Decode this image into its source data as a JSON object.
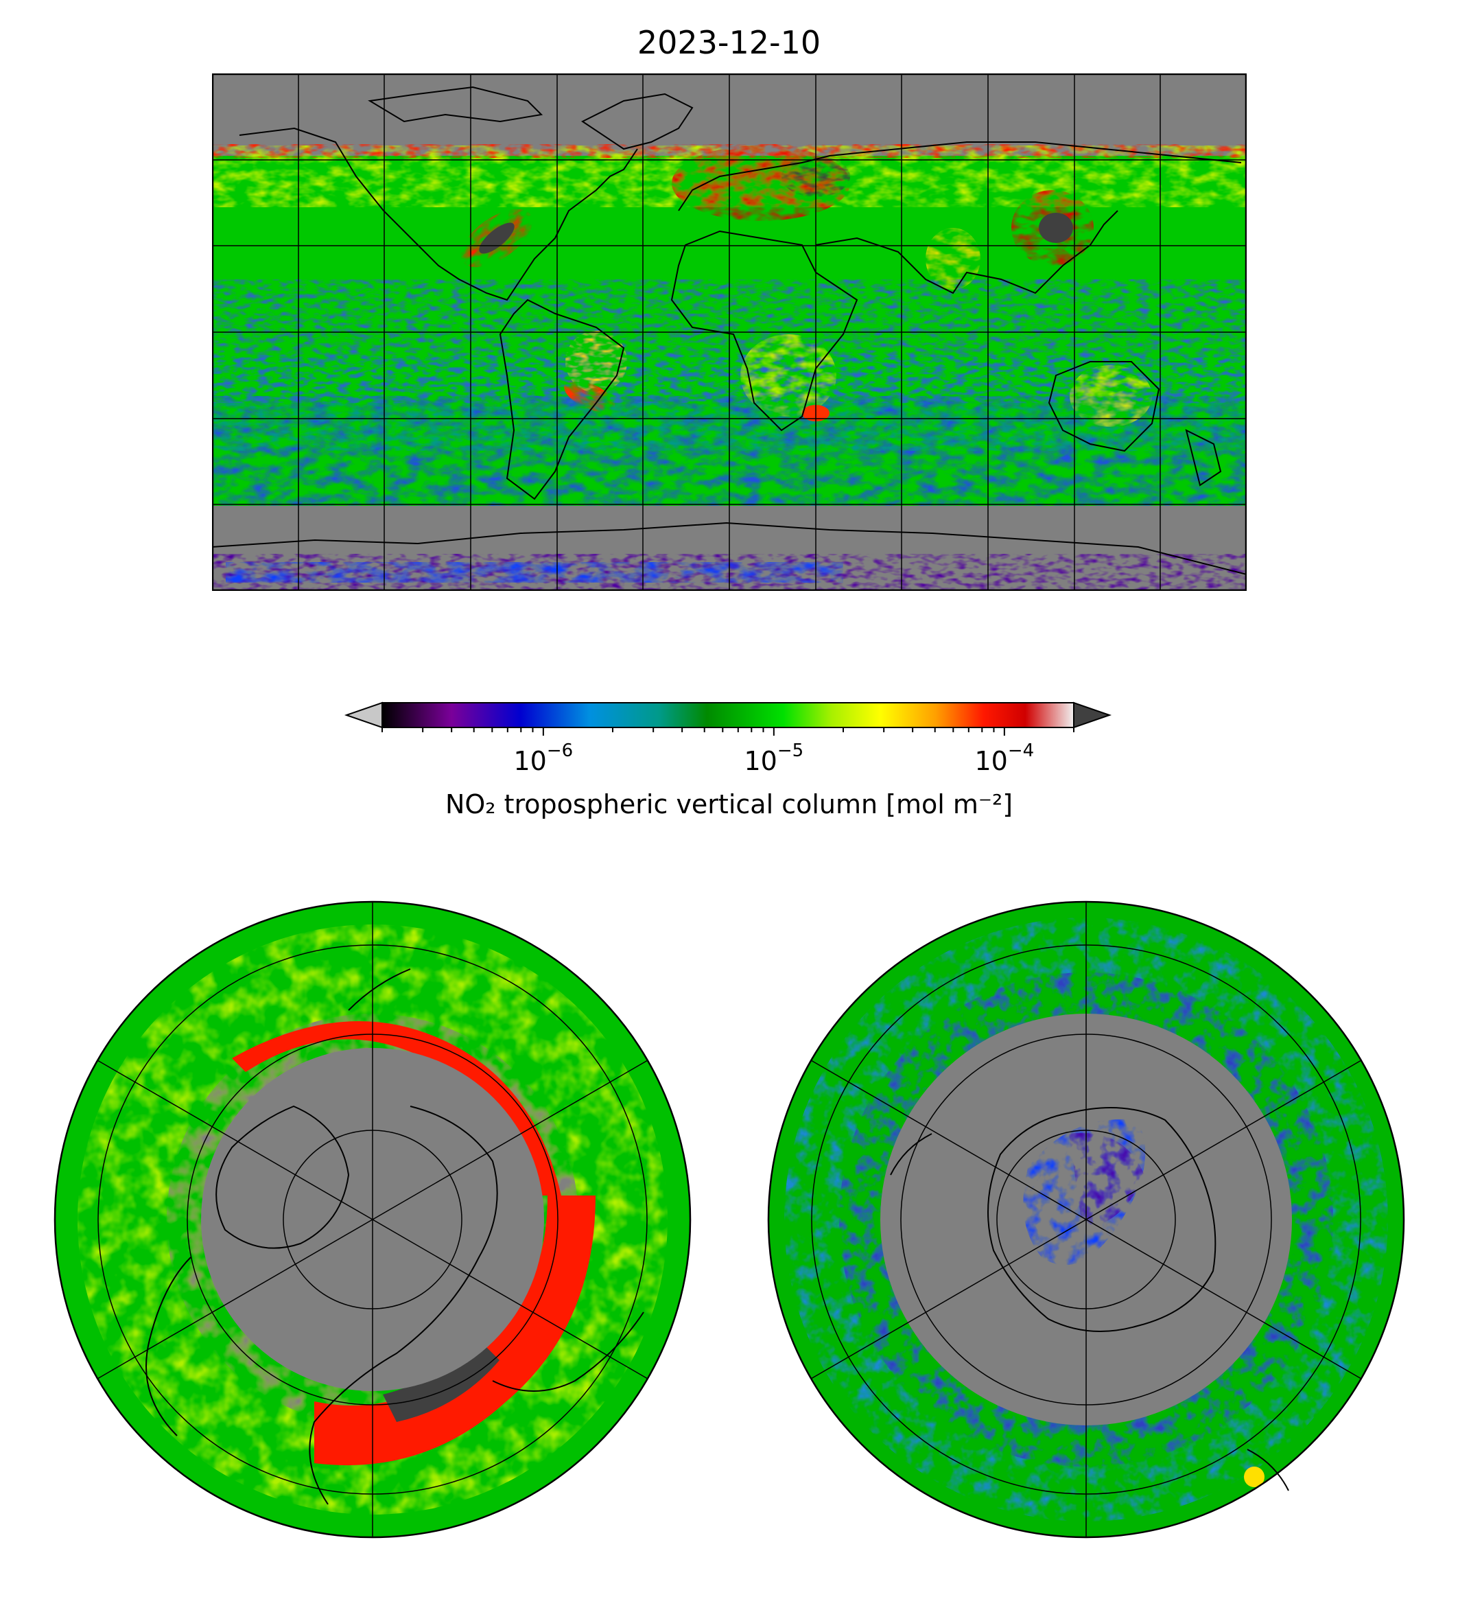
{
  "title": "2023-12-10",
  "colorbar": {
    "label": "NO₂ tropospheric vertical column [mol m⁻²]",
    "scale": "log",
    "vmin": 2e-07,
    "vmax": 0.0002,
    "ticks": [
      {
        "base": "10",
        "exp": "−6",
        "value": 1e-06
      },
      {
        "base": "10",
        "exp": "−5",
        "value": 1e-05
      },
      {
        "base": "10",
        "exp": "−4",
        "value": 0.0001
      }
    ],
    "extend": "both",
    "under_color": "#c8c8c8",
    "over_color": "#404040",
    "colormap": [
      "#000000",
      "#7a0099",
      "#0000d0",
      "#0090e0",
      "#009a8a",
      "#008a00",
      "#00e000",
      "#a8f000",
      "#ffff00",
      "#ffa000",
      "#ff1800",
      "#d00000",
      "#f0f0f0"
    ]
  },
  "map": {
    "no_data_color": "#808080",
    "coastline_color": "#000000",
    "graticule_color": "#000000",
    "panels": [
      "global-plate-carree",
      "north-polar-stereographic",
      "south-polar-stereographic"
    ]
  }
}
